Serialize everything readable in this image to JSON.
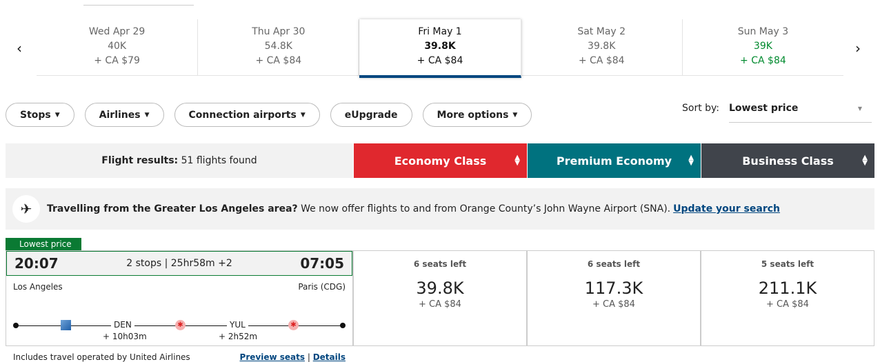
{
  "dates": [
    {
      "day": "Wed Apr 29",
      "points": "40K",
      "tax": "+ CA $79"
    },
    {
      "day": "Thu Apr 30",
      "points": "54.8K",
      "tax": "+ CA $84"
    },
    {
      "day": "Fri May 1",
      "points": "39.8K",
      "tax": "+ CA $84"
    },
    {
      "day": "Sat May 2",
      "points": "39.8K",
      "tax": "+ CA $84"
    },
    {
      "day": "Sun May 3",
      "points": "39K",
      "tax": "+ CA $84"
    }
  ],
  "filters": [
    "Stops",
    "Airlines",
    "Connection airports",
    "eUpgrade",
    "More options"
  ],
  "sort": {
    "label": "Sort by:",
    "value": "Lowest price"
  },
  "results": {
    "label": "Flight results:",
    "count": "51 flights found"
  },
  "cabins": [
    {
      "name": "Economy Class",
      "color": "#e0282e"
    },
    {
      "name": "Premium Economy",
      "color": "#00727f"
    },
    {
      "name": "Business Class",
      "color": "#40444b"
    }
  ],
  "banner": {
    "bold": "Travelling from the Greater Los Angeles area?",
    "text": "We now offer flights to and from Orange County’s John Wayne Airport (SNA).",
    "link": "Update your search"
  },
  "flight": {
    "tag": "Lowest price",
    "depart": "20:07",
    "summary": "2 stops | 25hr58m +2",
    "arrive": "07:05",
    "origin": "Los Angeles",
    "destination": "Paris (CDG)",
    "stops": [
      {
        "code": "DEN",
        "layover": "+ 10h03m"
      },
      {
        "code": "YUL",
        "layover": "+ 2h52m"
      }
    ],
    "operated": "Includes travel operated by United Airlines",
    "preview": "Preview seats",
    "sep": "|",
    "details": "Details",
    "fares": [
      {
        "seats": "6 seats left",
        "points": "39.8K",
        "tax": "+ CA $84"
      },
      {
        "seats": "6 seats left",
        "points": "117.3K",
        "tax": "+ CA $84"
      },
      {
        "seats": "5 seats left",
        "points": "211.1K",
        "tax": "+ CA $84"
      }
    ]
  }
}
